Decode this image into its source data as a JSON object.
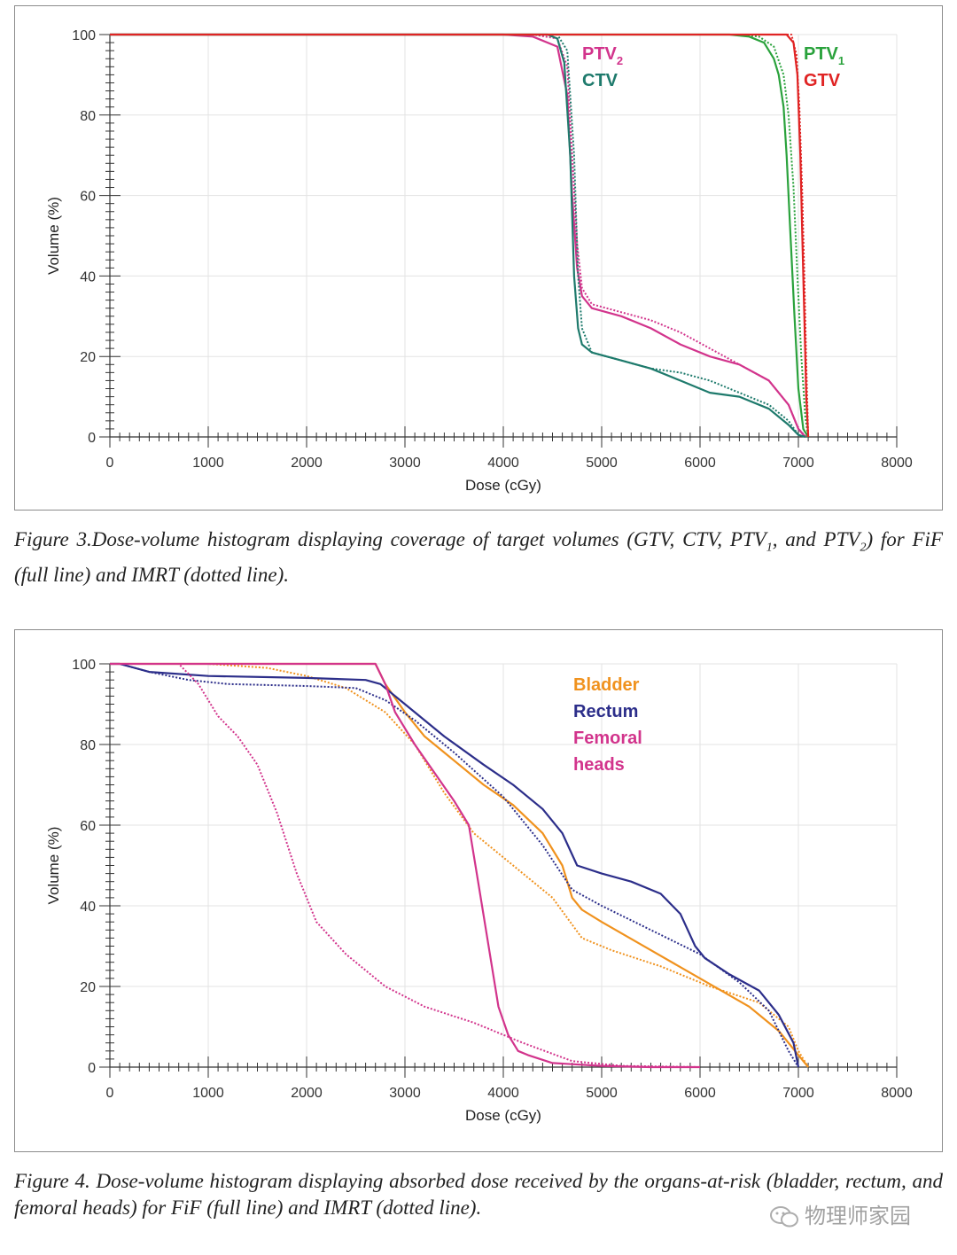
{
  "figure3": {
    "caption": {
      "prefix": "Figure 3.Dose-volume histogram displaying coverage of target volumes (GTV, CTV, PTV",
      "sub1": "1",
      "mid": ", and PTV",
      "sub2": "2",
      "suffix": ") for FiF (full line) and IMRT (dotted line)."
    }
  },
  "figure4": {
    "caption": "Figure 4. Dose-volume histogram displaying absorbed dose received by the organs-at-risk (bladder, rectum, and femoral heads) for FiF (full line) and IMRT (dotted line)."
  },
  "watermark": "物理师家园",
  "chart_data": [
    {
      "type": "line",
      "xlabel": "Dose (cGy)",
      "ylabel": "Volume (%)",
      "xlim": [
        0,
        8000
      ],
      "ylim": [
        0,
        100
      ],
      "xticks": [
        0,
        1000,
        2000,
        3000,
        4000,
        5000,
        6000,
        7000,
        8000
      ],
      "yticks": [
        0,
        20,
        40,
        60,
        80,
        100
      ],
      "grid": true,
      "labels": [
        {
          "text": "PTV",
          "sub": "2",
          "color": "#d2348c",
          "anchor": "ptv2"
        },
        {
          "text": "CTV",
          "sub": "",
          "color": "#1e7a6c",
          "anchor": "ctv"
        },
        {
          "text": "PTV",
          "sub": "1",
          "color": "#2aa23c",
          "anchor": "ptv1"
        },
        {
          "text": "GTV",
          "sub": "",
          "color": "#e02424",
          "anchor": "gtv"
        }
      ],
      "series": [
        {
          "name": "PTV2",
          "style": "solid",
          "color": "#d2348c",
          "x": [
            0,
            4000,
            4300,
            4550,
            4650,
            4700,
            4750,
            4800,
            4900,
            5200,
            5500,
            5800,
            6100,
            6400,
            6700,
            6900,
            7000,
            7070
          ],
          "y": [
            100,
            100,
            99.5,
            97,
            85,
            60,
            42,
            35,
            32,
            30,
            27,
            23,
            20,
            18,
            14,
            8,
            2,
            0
          ]
        },
        {
          "name": "PTV2",
          "style": "dotted",
          "color": "#d2348c",
          "x": [
            0,
            4300,
            4550,
            4650,
            4700,
            4750,
            4800,
            4900,
            5200,
            5500,
            5800,
            6100,
            6400,
            6700,
            6900,
            7000,
            7080
          ],
          "y": [
            100,
            100,
            99,
            92,
            70,
            48,
            37,
            33,
            31,
            29,
            26,
            22,
            18,
            14,
            8,
            2,
            0
          ]
        },
        {
          "name": "CTV",
          "style": "solid",
          "color": "#1e7a6c",
          "x": [
            0,
            4450,
            4550,
            4620,
            4680,
            4720,
            4760,
            4800,
            4900,
            5200,
            5500,
            5800,
            6100,
            6400,
            6700,
            6900,
            7000,
            7070
          ],
          "y": [
            100,
            100,
            99,
            93,
            70,
            40,
            27,
            23,
            21,
            19,
            17,
            14,
            11,
            10,
            7,
            3,
            0.5,
            0
          ]
        },
        {
          "name": "CTV",
          "style": "dotted",
          "color": "#1e7a6c",
          "x": [
            0,
            4550,
            4650,
            4720,
            4760,
            4800,
            4900,
            5200,
            5500,
            5800,
            6100,
            6400,
            6700,
            6900,
            7000,
            7080
          ],
          "y": [
            100,
            100,
            96,
            70,
            40,
            27,
            21,
            19,
            17,
            16,
            14,
            11,
            8,
            4,
            0.5,
            0
          ]
        },
        {
          "name": "PTV1",
          "style": "solid",
          "color": "#2aa23c",
          "x": [
            0,
            6300,
            6500,
            6650,
            6750,
            6800,
            6850,
            6880,
            6920,
            6960,
            7000,
            7050,
            7100
          ],
          "y": [
            100,
            100,
            99.5,
            98,
            94,
            90,
            82,
            70,
            50,
            30,
            12,
            2,
            0
          ]
        },
        {
          "name": "PTV1",
          "style": "dotted",
          "color": "#2aa23c",
          "x": [
            0,
            6400,
            6600,
            6750,
            6850,
            6900,
            6950,
            6990,
            7030,
            7070,
            7100
          ],
          "y": [
            100,
            100,
            99.5,
            97,
            90,
            80,
            62,
            40,
            20,
            5,
            0
          ]
        },
        {
          "name": "GTV",
          "style": "solid",
          "color": "#e02424",
          "x": [
            0,
            6880,
            6950,
            6990,
            7020,
            7040,
            7060,
            7080,
            7100
          ],
          "y": [
            100,
            100,
            98,
            90,
            70,
            50,
            30,
            10,
            0
          ]
        },
        {
          "name": "GTV",
          "style": "dotted",
          "color": "#e02424",
          "x": [
            0,
            6930,
            6980,
            7010,
            7040,
            7060,
            7080,
            7100
          ],
          "y": [
            100,
            100,
            95,
            82,
            60,
            40,
            18,
            0
          ]
        }
      ]
    },
    {
      "type": "line",
      "xlabel": "Dose (cGy)",
      "ylabel": "Volume (%)",
      "xlim": [
        0,
        8000
      ],
      "ylim": [
        0,
        100
      ],
      "xticks": [
        0,
        1000,
        2000,
        3000,
        4000,
        5000,
        6000,
        7000,
        8000
      ],
      "yticks": [
        0,
        20,
        40,
        60,
        80,
        100
      ],
      "grid": true,
      "labels": [
        {
          "text": "Bladder",
          "sub": "",
          "color": "#f0921e",
          "anchor": "bladder"
        },
        {
          "text": "Rectum",
          "sub": "",
          "color": "#2c2e8a",
          "anchor": "rectum"
        },
        {
          "text": "Femoral",
          "sub": "",
          "color": "#d2348c",
          "anchor": "femoral"
        },
        {
          "text": "heads",
          "sub": "",
          "color": "#d2348c",
          "anchor": "heads"
        }
      ],
      "series": [
        {
          "name": "Bladder",
          "style": "solid",
          "color": "#f0921e",
          "x": [
            0,
            2700,
            2800,
            3000,
            3200,
            3500,
            3800,
            4100,
            4400,
            4600,
            4700,
            4800,
            5000,
            5500,
            6000,
            6500,
            6800,
            7000,
            7100
          ],
          "y": [
            100,
            100,
            95,
            88,
            82,
            76,
            70,
            65,
            58,
            50,
            42,
            39,
            36,
            29,
            22,
            15,
            9,
            3,
            0
          ]
        },
        {
          "name": "Bladder",
          "style": "dotted",
          "color": "#f0921e",
          "x": [
            0,
            1000,
            1600,
            2000,
            2400,
            2800,
            3100,
            3400,
            3700,
            4100,
            4500,
            4800,
            5100,
            5600,
            6100,
            6600,
            6900,
            7000,
            7100
          ],
          "y": [
            100,
            100,
            99,
            97,
            94,
            88,
            80,
            68,
            58,
            50,
            42,
            32,
            29,
            25,
            20,
            16,
            10,
            4,
            0
          ]
        },
        {
          "name": "Rectum",
          "style": "solid",
          "color": "#2c2e8a",
          "x": [
            0,
            100,
            400,
            1000,
            2000,
            2600,
            2750,
            3000,
            3400,
            3800,
            4100,
            4400,
            4600,
            4750,
            5000,
            5300,
            5600,
            5800,
            5950,
            6050,
            6300,
            6600,
            6800,
            6950,
            7000
          ],
          "y": [
            100,
            100,
            98,
            97,
            96.5,
            96,
            95,
            90,
            82,
            75,
            70,
            64,
            58,
            50,
            48,
            46,
            43,
            38,
            30,
            27,
            23,
            19,
            13,
            6,
            0
          ]
        },
        {
          "name": "Rectum",
          "style": "dotted",
          "color": "#2c2e8a",
          "x": [
            0,
            100,
            400,
            800,
            1200,
            2000,
            2500,
            2800,
            3100,
            3500,
            4000,
            4400,
            4700,
            5000,
            5500,
            6000,
            6400,
            6700,
            6900,
            7000
          ],
          "y": [
            100,
            100,
            98,
            96,
            95,
            94.5,
            94,
            91,
            86,
            78,
            67,
            55,
            44,
            40,
            34,
            28,
            21,
            14,
            4,
            0
          ]
        },
        {
          "name": "Femoral heads",
          "style": "solid",
          "color": "#d2348c",
          "x": [
            0,
            2700,
            2800,
            2900,
            3100,
            3300,
            3500,
            3650,
            3750,
            3850,
            3950,
            4050,
            4150,
            4250,
            4500,
            5000,
            5500,
            6000
          ],
          "y": [
            100,
            100,
            95,
            88,
            80,
            73,
            66,
            60,
            45,
            30,
            15,
            8,
            4,
            3,
            1,
            0.3,
            0,
            0
          ]
        },
        {
          "name": "Femoral heads",
          "style": "dotted",
          "color": "#d2348c",
          "x": [
            0,
            700,
            900,
            1100,
            1300,
            1500,
            1700,
            1900,
            2100,
            2400,
            2800,
            3200,
            3700,
            4200,
            4700,
            5200,
            6000
          ],
          "y": [
            100,
            100,
            95,
            87,
            82,
            75,
            63,
            48,
            36,
            28,
            20,
            15,
            11,
            6,
            1.5,
            0.3,
            0
          ]
        }
      ]
    }
  ]
}
